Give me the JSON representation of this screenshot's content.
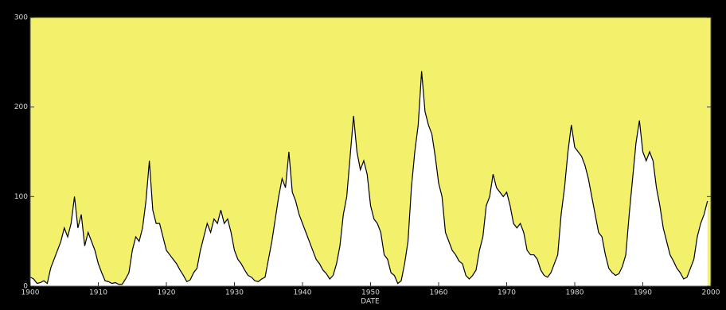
{
  "chart_data": {
    "type": "area",
    "xlabel": "DATE",
    "x": [
      1900,
      1900.5,
      1901,
      1901.5,
      1902,
      1902.5,
      1903,
      1903.5,
      1904,
      1904.5,
      1905,
      1905.5,
      1906,
      1906.5,
      1907,
      1907.5,
      1908,
      1908.5,
      1909,
      1909.5,
      1910,
      1910.5,
      1911,
      1911.5,
      1912,
      1912.5,
      1913,
      1913.5,
      1914,
      1914.5,
      1915,
      1915.5,
      1916,
      1916.5,
      1917,
      1917.5,
      1918,
      1918.5,
      1919,
      1919.5,
      1920,
      1920.5,
      1921,
      1921.5,
      1922,
      1922.5,
      1923,
      1923.5,
      1924,
      1924.5,
      1925,
      1925.5,
      1926,
      1926.5,
      1927,
      1927.5,
      1928,
      1928.5,
      1929,
      1929.5,
      1930,
      1930.5,
      1931,
      1931.5,
      1932,
      1932.5,
      1933,
      1933.5,
      1934,
      1934.5,
      1935,
      1935.5,
      1936,
      1936.5,
      1937,
      1937.5,
      1938,
      1938.5,
      1939,
      1939.5,
      1940,
      1940.5,
      1941,
      1941.5,
      1942,
      1942.5,
      1943,
      1943.5,
      1944,
      1944.5,
      1945,
      1945.5,
      1946,
      1946.5,
      1947,
      1947.5,
      1948,
      1948.5,
      1949,
      1949.5,
      1950,
      1950.5,
      1951,
      1951.5,
      1952,
      1952.5,
      1953,
      1953.5,
      1954,
      1954.5,
      1955,
      1955.5,
      1956,
      1956.5,
      1957,
      1957.5,
      1958,
      1958.5,
      1959,
      1959.5,
      1960,
      1960.5,
      1961,
      1961.5,
      1962,
      1962.5,
      1963,
      1963.5,
      1964,
      1964.5,
      1965,
      1965.5,
      1966,
      1966.5,
      1967,
      1967.5,
      1968,
      1968.5,
      1969,
      1969.5,
      1970,
      1970.5,
      1971,
      1971.5,
      1972,
      1972.5,
      1973,
      1973.5,
      1974,
      1974.5,
      1975,
      1975.5,
      1976,
      1976.5,
      1977,
      1977.5,
      1978,
      1978.5,
      1979,
      1979.5,
      1980,
      1980.5,
      1981,
      1981.5,
      1982,
      1982.5,
      1983,
      1983.5,
      1984,
      1984.5,
      1985,
      1985.5,
      1986,
      1986.5,
      1987,
      1987.5,
      1988,
      1988.5,
      1989,
      1989.5,
      1990,
      1990.5,
      1991,
      1991.5,
      1992,
      1992.5,
      1993,
      1993.5,
      1994,
      1994.5,
      1995,
      1995.5,
      1996,
      1996.5,
      1997,
      1997.5,
      1998,
      1998.5,
      1999,
      1999.5
    ],
    "values": [
      10,
      8,
      3,
      4,
      6,
      3,
      20,
      30,
      40,
      50,
      65,
      55,
      70,
      100,
      65,
      80,
      45,
      60,
      50,
      40,
      25,
      15,
      6,
      5,
      3,
      4,
      2,
      2,
      8,
      15,
      40,
      55,
      50,
      65,
      95,
      140,
      85,
      70,
      70,
      55,
      40,
      35,
      30,
      25,
      18,
      12,
      5,
      7,
      15,
      20,
      40,
      55,
      70,
      60,
      75,
      70,
      85,
      70,
      75,
      60,
      40,
      30,
      25,
      18,
      12,
      10,
      6,
      5,
      8,
      10,
      30,
      50,
      75,
      100,
      120,
      110,
      150,
      105,
      95,
      80,
      70,
      60,
      50,
      40,
      30,
      25,
      18,
      14,
      8,
      12,
      25,
      45,
      80,
      100,
      145,
      190,
      150,
      130,
      140,
      125,
      90,
      75,
      70,
      60,
      35,
      30,
      15,
      12,
      3,
      6,
      25,
      50,
      110,
      150,
      180,
      240,
      195,
      180,
      170,
      145,
      115,
      100,
      60,
      50,
      40,
      35,
      28,
      25,
      12,
      8,
      12,
      18,
      40,
      55,
      90,
      100,
      125,
      110,
      105,
      100,
      105,
      90,
      70,
      65,
      70,
      60,
      40,
      35,
      35,
      30,
      18,
      12,
      10,
      15,
      25,
      35,
      80,
      110,
      150,
      180,
      155,
      150,
      145,
      135,
      120,
      100,
      80,
      60,
      55,
      35,
      20,
      15,
      12,
      14,
      22,
      35,
      80,
      120,
      160,
      185,
      150,
      140,
      150,
      140,
      110,
      90,
      65,
      50,
      35,
      28,
      20,
      15,
      8,
      10,
      20,
      30,
      55,
      70,
      80,
      95
    ],
    "color": "#000000",
    "fill_color": "#ffffff",
    "background": "#f3f06b",
    "xlim": [
      1900,
      2000
    ],
    "xticks": [
      1900,
      1910,
      1920,
      1930,
      1940,
      1950,
      1960,
      1970,
      1980,
      1990,
      2000
    ],
    "ylim": [
      0,
      300
    ],
    "yticks": [
      0,
      100,
      200,
      300
    ]
  }
}
